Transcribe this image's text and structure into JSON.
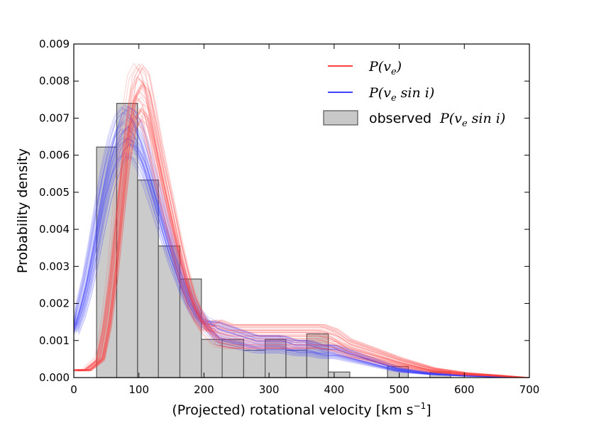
{
  "chart_data": {
    "type": "histogram+line",
    "xlabel": "(Projected) rotational velocity [km s",
    "xlabel_sup": "−1",
    "xlabel_end": "]",
    "ylabel": "Probability density",
    "xlim": [
      0,
      700
    ],
    "ylim": [
      0,
      0.009
    ],
    "x_ticks": [
      "0",
      "100",
      "200",
      "300",
      "400",
      "500",
      "600",
      "700"
    ],
    "y_ticks": [
      "0.000",
      "0.001",
      "0.002",
      "0.003",
      "0.004",
      "0.005",
      "0.006",
      "0.007",
      "0.008",
      "0.009"
    ],
    "grid": false,
    "legend_position": "top-right",
    "histogram": {
      "name": "observed P(v_e sin i)",
      "color": "#c8c8c8",
      "edge_color": "#555555",
      "bins": [
        {
          "x0": 35,
          "x1": 66,
          "y": 0.00622
        },
        {
          "x0": 66,
          "x1": 98,
          "y": 0.0074
        },
        {
          "x0": 98,
          "x1": 130,
          "y": 0.00533
        },
        {
          "x0": 130,
          "x1": 163,
          "y": 0.00355
        },
        {
          "x0": 163,
          "x1": 196,
          "y": 0.00266
        },
        {
          "x0": 196,
          "x1": 228,
          "y": 0.00103
        },
        {
          "x0": 228,
          "x1": 261,
          "y": 0.00103
        },
        {
          "x0": 261,
          "x1": 294,
          "y": 0.00074
        },
        {
          "x0": 294,
          "x1": 326,
          "y": 0.00103
        },
        {
          "x0": 326,
          "x1": 358,
          "y": 0.00074
        },
        {
          "x0": 358,
          "x1": 391,
          "y": 0.00118
        },
        {
          "x0": 391,
          "x1": 424,
          "y": 0.00015
        },
        {
          "x0": 482,
          "x1": 514,
          "y": 0.0003
        },
        {
          "x0": 547,
          "x1": 579,
          "y": 0.00015
        }
      ]
    },
    "series": [
      {
        "name": "P(v_e)",
        "color": "#ff4040",
        "x": [
          0,
          20,
          40,
          50,
          60,
          70,
          80,
          90,
          100,
          110,
          120,
          130,
          140,
          150,
          160,
          170,
          180,
          190,
          200,
          220,
          240,
          260,
          280,
          300,
          320,
          340,
          360,
          380,
          400,
          420,
          440,
          460,
          480,
          500,
          550,
          600,
          650,
          700
        ],
        "y": [
          0.0002,
          0.0002,
          0.0005,
          0.0014,
          0.0028,
          0.0046,
          0.0063,
          0.0074,
          0.0077,
          0.0075,
          0.0067,
          0.0058,
          0.005,
          0.0042,
          0.0034,
          0.0027,
          0.0021,
          0.0017,
          0.0014,
          0.0012,
          0.0011,
          0.0011,
          0.0011,
          0.0011,
          0.0011,
          0.0011,
          0.0011,
          0.0011,
          0.001,
          0.0008,
          0.0007,
          0.0006,
          0.0005,
          0.0004,
          0.0002,
          0.0001,
          5e-05,
          0.0
        ]
      },
      {
        "name": "P(v_e sin i)",
        "color": "#4040ff",
        "x": [
          0,
          10,
          20,
          30,
          40,
          50,
          60,
          70,
          80,
          90,
          100,
          110,
          120,
          130,
          140,
          150,
          160,
          170,
          180,
          190,
          200,
          220,
          240,
          260,
          280,
          300,
          320,
          340,
          360,
          380,
          400,
          420,
          440,
          460,
          480,
          500,
          550,
          600,
          650,
          700
        ],
        "y": [
          0.0013,
          0.0018,
          0.0025,
          0.0034,
          0.0044,
          0.0053,
          0.006,
          0.0065,
          0.0067,
          0.0066,
          0.0063,
          0.0058,
          0.0052,
          0.0046,
          0.004,
          0.0034,
          0.0029,
          0.0024,
          0.002,
          0.0017,
          0.0015,
          0.0012,
          0.0011,
          0.001,
          0.0009,
          0.0009,
          0.0009,
          0.0008,
          0.0008,
          0.0007,
          0.0007,
          0.0006,
          0.0005,
          0.0004,
          0.0003,
          0.0002,
          0.0001,
          5e-05,
          2e-05,
          0.0
        ]
      }
    ],
    "legend": {
      "entries": [
        {
          "text": "P(v",
          "sub": "e",
          "tail": ")",
          "kind": "line",
          "color": "#ff4040"
        },
        {
          "text": "P(v",
          "sub": "e",
          "tail": " sin i)",
          "kind": "line",
          "color": "#4040ff"
        },
        {
          "prefix": "observed ",
          "text": "P(v",
          "sub": "e",
          "tail": " sin i)",
          "kind": "patch",
          "color": "#c8c8c8"
        }
      ]
    }
  }
}
